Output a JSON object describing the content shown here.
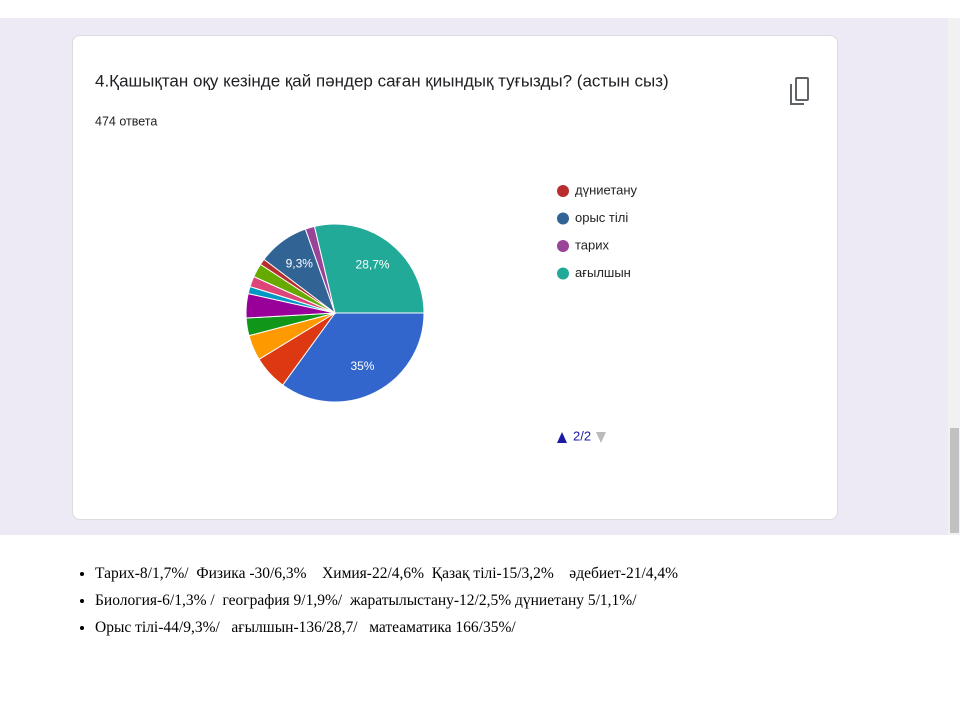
{
  "chart_data": {
    "type": "pie",
    "title": "4.Қашықтан оқу кезінде қай пәндер саған қиындық туғызды? (астын сыз)",
    "subtitle": "474 ответа",
    "categories": [
      null,
      null,
      null,
      null,
      null,
      null,
      null,
      null,
      "дүниетану",
      "орыс тілі",
      "тарих",
      "ағылшын"
    ],
    "values": [
      35,
      6.3,
      4.6,
      3.2,
      4.4,
      1.3,
      1.9,
      2.5,
      1.1,
      9.3,
      1.7,
      28.7
    ],
    "value_labels": [
      "35%",
      null,
      null,
      null,
      null,
      null,
      null,
      null,
      null,
      "9,3%",
      null,
      "28,7%"
    ],
    "colors": [
      "#3366cc",
      "#dc3912",
      "#ff9900",
      "#109618",
      "#990099",
      "#0099c6",
      "#dd4477",
      "#66aa00",
      "#b82e2e",
      "#316395",
      "#994499",
      "#22aa99"
    ],
    "legend_page": "2/2"
  },
  "notes": [
    "Тарих-8/1,7%/  Физика -30/6,3%    Химия-22/4,6%  Қазақ тілі-15/3,2%    әдебиет-21/4,4%",
    "Биология-6/1,3% /  география 9/1,9%/  жаратылыстану-12/2,5% дүниетану 5/1,1%/",
    "Орыс тілі-44/9,3%/   ағылшын-136/28,7/   матеаматика 166/35%/"
  ]
}
